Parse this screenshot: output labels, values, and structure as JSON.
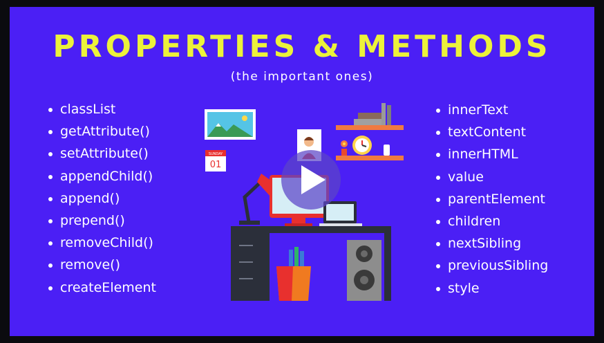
{
  "slide": {
    "title": "PROPERTIES & METHODS",
    "subtitle": "(the important ones)"
  },
  "left_list": [
    "classList",
    "getAttribute()",
    "setAttribute()",
    "appendChild()",
    "append()",
    "prepend()",
    "removeChild()",
    "remove()",
    "createElement"
  ],
  "right_list": [
    "innerText",
    "textContent",
    "innerHTML",
    "value",
    "parentElement",
    "children",
    "nextSibling",
    "previousSibling",
    "style"
  ],
  "illustration": {
    "calendar_day": "SUNDAY",
    "calendar_date": "01",
    "play_icon": "play-icon"
  },
  "colors": {
    "background": "#4b1ff5",
    "title": "#ecf23a",
    "text": "#ffffff"
  }
}
